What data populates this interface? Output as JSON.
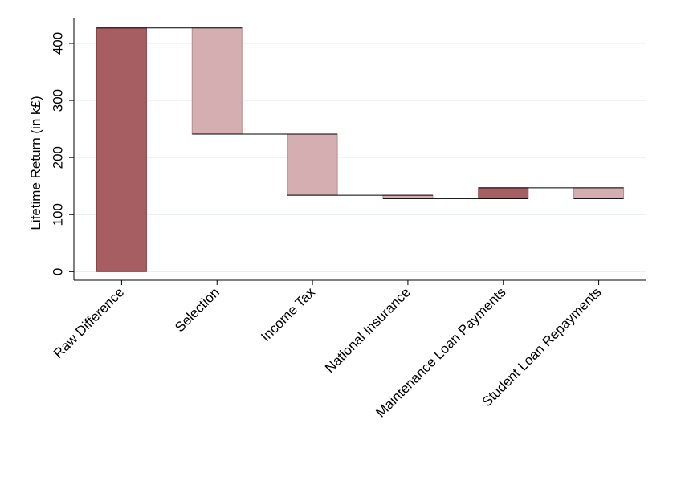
{
  "chart_data": {
    "type": "bar",
    "subtype": "waterfall",
    "title": "",
    "xlabel": "",
    "ylabel": "Lifetime Return (in k£)",
    "ylim": [
      -15,
      445
    ],
    "yticks": [
      0,
      100,
      200,
      300,
      400
    ],
    "grid": true,
    "legend": "none",
    "categories": [
      "Raw Difference",
      "Selection",
      "Income Tax",
      "National Insurance",
      "Maintenance Loan Payments",
      "Student Loan Repayments"
    ],
    "bars": [
      {
        "category": "Raw Difference",
        "start": 0,
        "end": 427,
        "change": 427,
        "kind": "positive"
      },
      {
        "category": "Selection",
        "start": 427,
        "end": 241,
        "change": -186,
        "kind": "negative"
      },
      {
        "category": "Income Tax",
        "start": 241,
        "end": 134,
        "change": -107,
        "kind": "negative"
      },
      {
        "category": "National Insurance",
        "start": 134,
        "end": 128,
        "change": -6,
        "kind": "negative"
      },
      {
        "category": "Maintenance Loan Payments",
        "start": 128,
        "end": 147,
        "change": 19,
        "kind": "positive"
      },
      {
        "category": "Student Loan Repayments",
        "start": 147,
        "end": 128,
        "change": -19,
        "kind": "negative"
      }
    ],
    "colors": {
      "positive": "#a65e63",
      "positive_edge": "#8b3f46",
      "negative": "#d4aeb1",
      "negative_edge": "#b88b90",
      "grid": "#e6eef1",
      "connector": "#000000"
    }
  }
}
